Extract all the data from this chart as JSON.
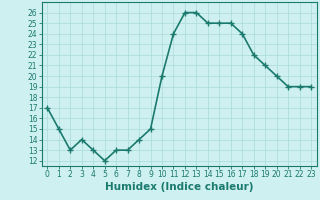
{
  "x": [
    0,
    1,
    2,
    3,
    4,
    5,
    6,
    7,
    8,
    9,
    10,
    11,
    12,
    13,
    14,
    15,
    16,
    17,
    18,
    19,
    20,
    21,
    22,
    23
  ],
  "y": [
    17,
    15,
    13,
    14,
    13,
    12,
    13,
    13,
    14,
    15,
    20,
    24,
    26,
    26,
    25,
    25,
    25,
    24,
    22,
    21,
    20,
    19,
    19,
    19
  ],
  "line_color": "#1a7a6e",
  "marker": "+",
  "marker_size": 4,
  "bg_color": "#cff0f0",
  "grid_color": "#b0dede",
  "plot_bg": "#cff0f0",
  "xlabel": "Humidex (Indice chaleur)",
  "xlabel_fontsize": 7.5,
  "ylim": [
    11.5,
    27
  ],
  "xlim": [
    -0.5,
    23.5
  ],
  "yticks": [
    12,
    13,
    14,
    15,
    16,
    17,
    18,
    19,
    20,
    21,
    22,
    23,
    24,
    25,
    26
  ],
  "xticks": [
    0,
    1,
    2,
    3,
    4,
    5,
    6,
    7,
    8,
    9,
    10,
    11,
    12,
    13,
    14,
    15,
    16,
    17,
    18,
    19,
    20,
    21,
    22,
    23
  ],
  "tick_fontsize": 5.5,
  "line_width": 1.2,
  "spine_color": "#1a7a6e"
}
